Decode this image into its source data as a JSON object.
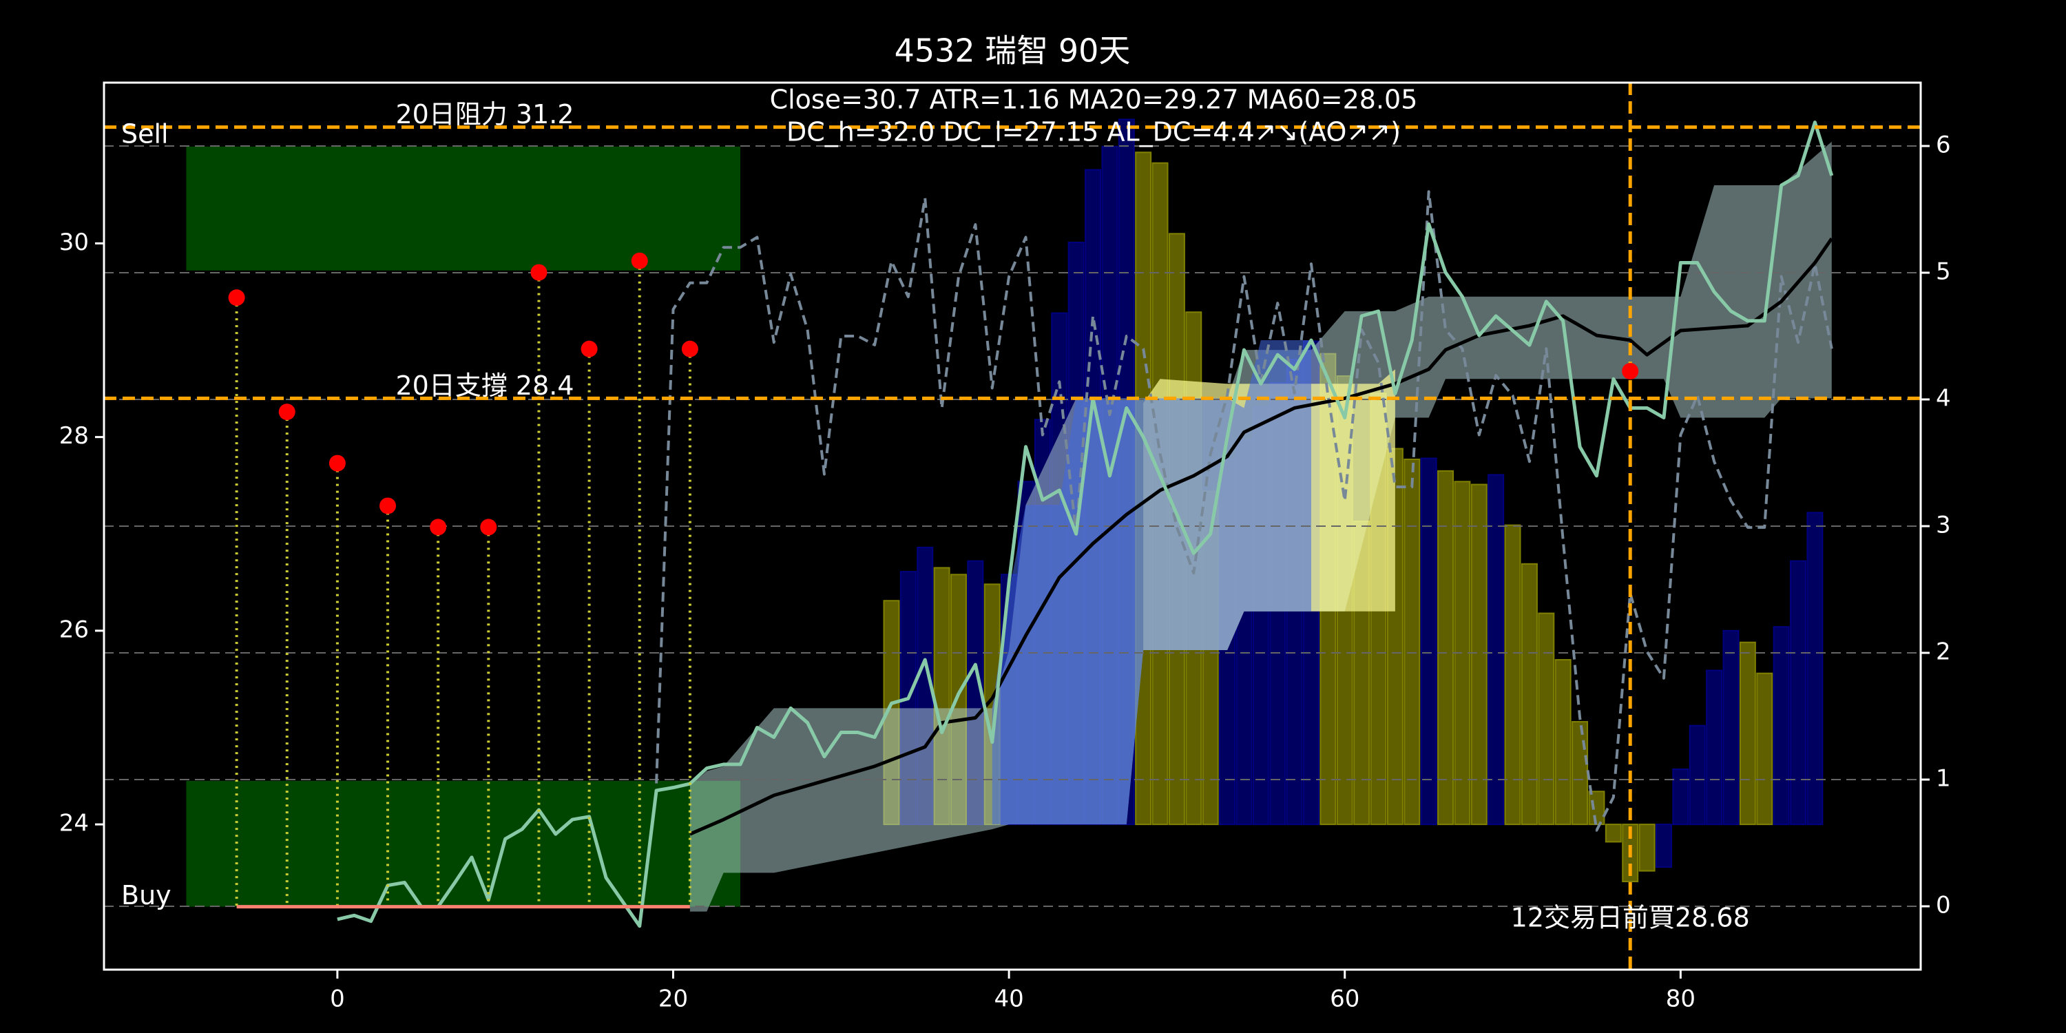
{
  "chart_data": {
    "type": "combo",
    "title": "4532 瑞智 90天",
    "annotations": [
      "Close=30.7 ATR=1.16 MA20=29.27 MA60=28.05",
      "DC_h=32.0 DC_l=27.15 AL_DC=4.4↗↘(AO↗↗)"
    ],
    "xlim": [
      -13.9,
      94.3
    ],
    "ylim": [
      22.5,
      31.66
    ],
    "y2lim": [
      -0.5,
      6.5
    ],
    "xticks": [
      0,
      20,
      40,
      60,
      80
    ],
    "yticks": [
      24,
      26,
      28,
      30
    ],
    "y2ticks": [
      0,
      1,
      2,
      3,
      4,
      5,
      6
    ],
    "grid": true,
    "zones": [
      {
        "name": "Sell",
        "x": [
          -9,
          24
        ],
        "y": [
          29.72,
          31.0
        ],
        "color": "#006400"
      },
      {
        "name": "Buy",
        "x": [
          -9,
          24
        ],
        "y": [
          23.15,
          24.45
        ],
        "color": "#006400"
      }
    ],
    "levels": [
      {
        "label": "20日阻力 31.2",
        "value": 31.2,
        "color": "#ffa500"
      },
      {
        "label": "20日支撐 28.4",
        "value": 28.4,
        "color": "#ffa500"
      }
    ],
    "bars": {
      "base": 24,
      "x": [
        33,
        34,
        35,
        36,
        37,
        38,
        39,
        40,
        41,
        42,
        43,
        44,
        45,
        46,
        47,
        48,
        49,
        50,
        51,
        52,
        53,
        54,
        55,
        56,
        57,
        58,
        59,
        60,
        61,
        62,
        63,
        64,
        65,
        66,
        67,
        68,
        69,
        70,
        71,
        72,
        73,
        74,
        75,
        76,
        77,
        78,
        79,
        80,
        81,
        82,
        83,
        84,
        85,
        86,
        87,
        88
      ],
      "values": [
        2.31,
        2.61,
        2.86,
        2.65,
        2.58,
        2.72,
        2.48,
        2.58,
        3.54,
        4.18,
        5.28,
        6.01,
        6.76,
        7.0,
        7.28,
        6.94,
        6.83,
        6.1,
        5.29,
        3.44,
        3.77,
        3.97,
        4.31,
        4.56,
        4.8,
        4.99,
        4.86,
        4.63,
        3.13,
        4.45,
        3.88,
        3.77,
        3.78,
        3.65,
        3.54,
        3.51,
        3.61,
        3.09,
        2.69,
        2.18,
        1.7,
        1.06,
        0.34,
        -0.18,
        -0.59,
        -0.48,
        -0.44,
        0.57,
        1.02,
        1.59,
        2.0,
        1.88,
        1.56,
        2.04,
        2.72,
        3.22
      ],
      "colors": [
        "#808000",
        "#000080",
        "#000080",
        "#808000",
        "#808000",
        "#000080",
        "#808000",
        "#000080",
        "#000080",
        "#000080",
        "#000080",
        "#000080",
        "#000080",
        "#000080",
        "#000080",
        "#808000",
        "#808000",
        "#808000",
        "#808000",
        "#808000",
        "#000080",
        "#000080",
        "#000080",
        "#000080",
        "#000080",
        "#000080",
        "#808000",
        "#808000",
        "#808000",
        "#808000",
        "#808000",
        "#808000",
        "#000080",
        "#808000",
        "#808000",
        "#808000",
        "#000080",
        "#808000",
        "#808000",
        "#808000",
        "#808000",
        "#808000",
        "#808000",
        "#808000",
        "#808000",
        "#808000",
        "#000080",
        "#000080",
        "#000080",
        "#000080",
        "#000080",
        "#808000",
        "#808000",
        "#000080",
        "#000080",
        "#000080"
      ]
    },
    "bands": [
      {
        "color": "#b8d8d8",
        "opacity": 0.5,
        "x": [
          21,
          22,
          23,
          26,
          39,
          40,
          41,
          44,
          47,
          48,
          53,
          54,
          58,
          60,
          63,
          65,
          66,
          79,
          80,
          82,
          85,
          86,
          89
        ],
        "upper": [
          24.4,
          24.55,
          24.6,
          25.2,
          25.2,
          25.8,
          27.3,
          28.4,
          28.4,
          28.4,
          28.4,
          28.9,
          28.9,
          29.3,
          29.3,
          29.45,
          29.45,
          29.45,
          29.45,
          30.6,
          30.6,
          30.6,
          31.05
        ],
        "lower": [
          23.1,
          23.1,
          23.5,
          23.5,
          23.95,
          24.0,
          24.0,
          24.0,
          24.0,
          25.8,
          25.8,
          26.2,
          26.2,
          26.2,
          28.2,
          28.2,
          28.6,
          28.6,
          28.2,
          28.2,
          28.2,
          28.4,
          28.4
        ]
      },
      {
        "color": "#ffff99",
        "opacity": 0.7,
        "x": [
          48,
          49,
          53,
          54,
          62,
          63
        ],
        "upper": [
          28.35,
          28.6,
          28.55,
          28.55,
          28.55,
          28.7
        ],
        "lower": [
          25.8,
          25.8,
          25.8,
          26.2,
          26.2,
          26.2
        ]
      },
      {
        "color": "#4169e1",
        "opacity": 0.55,
        "x": [
          39,
          40,
          41,
          43,
          44,
          47,
          48,
          53,
          54,
          55,
          58
        ],
        "upper": [
          25.2,
          26.4,
          27.3,
          27.3,
          28.4,
          28.4,
          28.4,
          28.4,
          28.3,
          29.0,
          29.0
        ],
        "lower": [
          24.0,
          24.0,
          24.0,
          24.0,
          24.0,
          24.0,
          25.8,
          25.8,
          26.2,
          26.2,
          26.2
        ]
      }
    ],
    "series": [
      {
        "color": "#778899",
        "dashed": true,
        "axis": "y2",
        "x": [
          19,
          20,
          21,
          22,
          23,
          24,
          25,
          26,
          27,
          28,
          29,
          30,
          31,
          32,
          33,
          34,
          35,
          36,
          37,
          38,
          39,
          40,
          41,
          42,
          43,
          44,
          45,
          46,
          47,
          48,
          49,
          50,
          51,
          52,
          53,
          54,
          55,
          56,
          57,
          58,
          59,
          60,
          61,
          62,
          63,
          64,
          65,
          66,
          67,
          68,
          69,
          70,
          71,
          72,
          73,
          74,
          75,
          76,
          77,
          78,
          79,
          80,
          81,
          82,
          83,
          84,
          85,
          86,
          87,
          88,
          89
        ],
        "values": [
          0.97,
          4.71,
          4.92,
          4.92,
          5.2,
          5.2,
          5.28,
          4.45,
          4.99,
          4.55,
          3.41,
          4.5,
          4.5,
          4.43,
          5.09,
          4.81,
          5.59,
          3.93,
          4.97,
          5.38,
          4.09,
          4.97,
          5.28,
          3.72,
          4.14,
          2.94,
          4.66,
          3.88,
          4.5,
          4.4,
          3.57,
          2.99,
          2.63,
          3.57,
          4.03,
          4.97,
          4.14,
          4.76,
          4.05,
          5.07,
          4.03,
          3.2,
          4.55,
          4.29,
          3.31,
          3.31,
          5.64,
          4.55,
          4.4,
          3.72,
          4.19,
          4.03,
          3.51,
          4.4,
          2.89,
          1.49,
          0.6,
          0.86,
          2.47,
          2.01,
          1.8,
          3.72,
          4.03,
          3.51,
          3.2,
          2.99,
          2.99,
          4.97,
          4.45,
          5.07,
          4.4
        ]
      },
      {
        "color": "#000000",
        "dashed": false,
        "axis": "y",
        "x": [
          21,
          23,
          26,
          29,
          32,
          35,
          36,
          38,
          39,
          41,
          43,
          45,
          47,
          49,
          51,
          53,
          54,
          57,
          60,
          63,
          65,
          66,
          68,
          71,
          73,
          75,
          77,
          78,
          80,
          84,
          86,
          88,
          89
        ],
        "values": [
          23.9,
          24.05,
          24.3,
          24.45,
          24.6,
          24.8,
          25.05,
          25.1,
          25.3,
          25.95,
          26.55,
          26.9,
          27.2,
          27.45,
          27.6,
          27.8,
          28.05,
          28.3,
          28.4,
          28.55,
          28.7,
          28.9,
          29.05,
          29.15,
          29.25,
          29.05,
          29.0,
          28.85,
          29.1,
          29.15,
          29.4,
          29.8,
          30.05
        ]
      },
      {
        "color": "#88c9a8",
        "dashed": false,
        "axis": "y",
        "x": [
          0,
          1,
          2,
          3,
          4,
          5,
          6,
          7,
          8,
          9,
          10,
          11,
          12,
          13,
          14,
          15,
          16,
          17,
          18,
          19,
          20,
          21,
          22,
          23,
          24,
          25,
          26,
          27,
          28,
          29,
          30,
          31,
          32,
          33,
          34,
          35,
          36,
          37,
          38,
          39,
          40,
          41,
          42,
          43,
          44,
          45,
          46,
          47,
          48,
          49,
          50,
          51,
          52,
          53,
          54,
          55,
          56,
          57,
          58,
          59,
          60,
          61,
          62,
          63,
          64,
          65,
          66,
          67,
          68,
          69,
          70,
          71,
          72,
          73,
          74,
          75,
          76,
          77,
          78,
          79,
          80,
          81,
          82,
          83,
          84,
          85,
          86,
          87,
          88,
          89
        ],
        "values": [
          23.02,
          23.06,
          23.0,
          23.37,
          23.4,
          23.15,
          23.15,
          23.4,
          23.66,
          23.22,
          23.85,
          23.95,
          24.15,
          23.9,
          24.05,
          24.08,
          23.45,
          23.2,
          22.95,
          24.35,
          24.38,
          24.42,
          24.58,
          24.62,
          24.62,
          25.0,
          24.9,
          25.2,
          25.05,
          24.7,
          24.95,
          24.95,
          24.9,
          25.25,
          25.3,
          25.7,
          24.95,
          25.35,
          25.65,
          24.85,
          26.5,
          27.9,
          27.35,
          27.45,
          27.0,
          28.4,
          27.6,
          28.3,
          28.0,
          27.6,
          27.2,
          26.8,
          27.0,
          28.0,
          28.9,
          28.55,
          28.85,
          28.7,
          29.0,
          28.6,
          28.2,
          29.25,
          29.3,
          28.45,
          29.0,
          30.2,
          29.7,
          29.45,
          29.05,
          29.25,
          29.1,
          28.95,
          29.4,
          29.2,
          27.9,
          27.6,
          28.6,
          28.3,
          28.3,
          28.2,
          29.8,
          29.8,
          29.5,
          29.3,
          29.2,
          29.2,
          30.6,
          30.7,
          31.25,
          30.7
        ]
      }
    ],
    "signals": {
      "x": [
        -6,
        -3,
        0,
        3,
        6,
        9,
        12,
        15,
        18,
        21
      ],
      "values": [
        29.44,
        28.26,
        27.73,
        27.29,
        27.07,
        27.07,
        29.7,
        28.91,
        29.82,
        28.91
      ],
      "floor": 23.15,
      "color": "#ff0000",
      "stem_color": "#cccc33",
      "floor_color": "#fa8072"
    },
    "buy_marker": {
      "x": 77,
      "value": 28.68,
      "label": "12交易日前買28.68",
      "color": "#ff0000",
      "line_color": "#ffa500"
    }
  }
}
